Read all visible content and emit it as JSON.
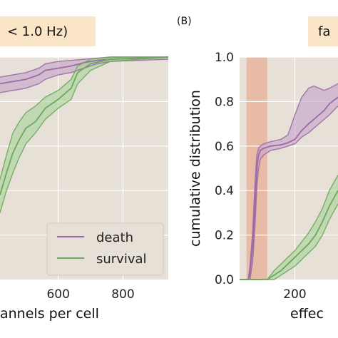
{
  "colors": {
    "axes_bg": "#e6e0d6",
    "title_box": "#fbe6c8",
    "grid": "#ffffff",
    "death": "#9b6aa6",
    "death_fill": "#c4a2c9",
    "survival": "#6ca85b",
    "survival_fill": "#a9d49a",
    "highlight": "#e8b49e"
  },
  "chart_data": [
    {
      "type": "line",
      "panel": "",
      "title": "< 1.0 Hz)",
      "xlabel": "annels per cell",
      "ylabel": "",
      "xlim": [
        420,
        940
      ],
      "ylim": [
        0,
        1.0
      ],
      "xticks": [
        600,
        800
      ],
      "xtick_labels": [
        "600",
        "800"
      ],
      "grid": true,
      "legend_position": "lower-right",
      "series": [
        {
          "name": "death",
          "color": "death",
          "x": [
            420,
            460,
            500,
            540,
            560,
            600,
            640,
            680,
            720,
            760,
            940
          ],
          "y": [
            0.88,
            0.89,
            0.9,
            0.92,
            0.94,
            0.95,
            0.96,
            0.975,
            0.985,
            0.99,
            1.0
          ],
          "band_lower": [
            0.84,
            0.85,
            0.86,
            0.88,
            0.9,
            0.92,
            0.93,
            0.95,
            0.97,
            0.98,
            0.99
          ],
          "band_upper": [
            0.91,
            0.92,
            0.93,
            0.95,
            0.97,
            0.98,
            0.985,
            0.99,
            0.995,
            1.0,
            1.0
          ]
        },
        {
          "name": "survival",
          "color": "survival",
          "x": [
            420,
            440,
            460,
            480,
            500,
            530,
            560,
            600,
            640,
            660,
            700,
            760,
            940
          ],
          "y": [
            0.38,
            0.48,
            0.57,
            0.63,
            0.68,
            0.71,
            0.77,
            0.81,
            0.86,
            0.93,
            0.97,
            0.99,
            1.0
          ],
          "band_lower": [
            0.3,
            0.4,
            0.48,
            0.55,
            0.61,
            0.66,
            0.72,
            0.77,
            0.81,
            0.88,
            0.94,
            0.98,
            1.0
          ],
          "band_upper": [
            0.45,
            0.56,
            0.66,
            0.71,
            0.75,
            0.78,
            0.82,
            0.85,
            0.9,
            0.96,
            0.99,
            1.0,
            1.0
          ]
        }
      ]
    },
    {
      "type": "line",
      "panel": "(B)",
      "title": "fa",
      "xlabel": "effec",
      "ylabel": "cumulative distribution",
      "xlim": [
        40,
        325
      ],
      "ylim": [
        0,
        1.0
      ],
      "xticks": [
        200
      ],
      "xtick_labels": [
        "200"
      ],
      "yticks": [
        0.0,
        0.2,
        0.4,
        0.6,
        0.8,
        1.0
      ],
      "ytick_labels": [
        "0.0",
        "0.2",
        "0.4",
        "0.6",
        "0.8",
        "1.0"
      ],
      "grid": true,
      "highlight_span": [
        60,
        120
      ],
      "series": [
        {
          "name": "death",
          "color": "death",
          "x": [
            40,
            65,
            70,
            78,
            85,
            90,
            95,
            100,
            110,
            130,
            160,
            180,
            200,
            220,
            240,
            255,
            270,
            285,
            300,
            325
          ],
          "y": [
            0.0,
            0.0,
            0.03,
            0.15,
            0.35,
            0.5,
            0.56,
            0.58,
            0.59,
            0.6,
            0.605,
            0.615,
            0.63,
            0.67,
            0.7,
            0.72,
            0.74,
            0.76,
            0.79,
            0.82
          ],
          "band_lower": [
            0.0,
            0.0,
            0.0,
            0.08,
            0.25,
            0.42,
            0.5,
            0.54,
            0.56,
            0.58,
            0.59,
            0.6,
            0.61,
            0.64,
            0.66,
            0.68,
            0.7,
            0.72,
            0.74,
            0.78
          ],
          "band_upper": [
            0.0,
            0.0,
            0.06,
            0.22,
            0.45,
            0.56,
            0.59,
            0.6,
            0.61,
            0.62,
            0.63,
            0.65,
            0.74,
            0.82,
            0.86,
            0.87,
            0.86,
            0.85,
            0.86,
            0.88
          ]
        },
        {
          "name": "survival",
          "color": "survival",
          "x": [
            40,
            120,
            140,
            160,
            180,
            200,
            220,
            240,
            260,
            280,
            300,
            325
          ],
          "y": [
            0.0,
            0.0,
            0.02,
            0.04,
            0.07,
            0.1,
            0.13,
            0.16,
            0.2,
            0.26,
            0.33,
            0.4
          ],
          "band_lower": [
            0.0,
            0.0,
            0.0,
            0.02,
            0.04,
            0.06,
            0.09,
            0.12,
            0.15,
            0.2,
            0.27,
            0.34
          ],
          "band_upper": [
            0.0,
            0.0,
            0.04,
            0.07,
            0.1,
            0.13,
            0.17,
            0.21,
            0.26,
            0.32,
            0.4,
            0.47
          ]
        }
      ]
    }
  ],
  "legend": {
    "death_label": "death",
    "survival_label": "survival"
  }
}
